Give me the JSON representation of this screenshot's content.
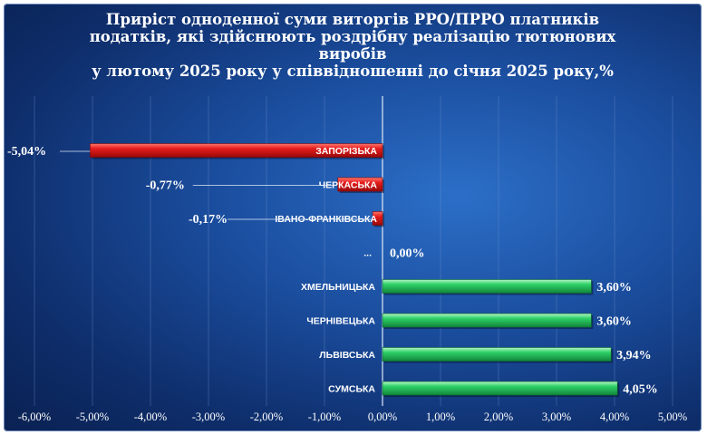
{
  "chart_data": {
    "type": "bar",
    "orientation": "horizontal",
    "title_lines": [
      "Приріст одноденної суми виторгів РРО/ПРРО платників",
      "податків, які здійснюють роздрібну реалізацію тютюнових",
      "виробів",
      "у лютому 2025 року у співвідношенні до січня 2025 року,%"
    ],
    "categories": [
      "ЗАПОРІЗЬКА",
      "ЧЕРКАСЬКА",
      "ІВАНО-ФРАНКІВСЬКА",
      "...",
      "ХМЕЛЬНИЦЬКА",
      "ЧЕРНІВЕЦЬКА",
      "ЛЬВІВСЬКА",
      "СУМСЬКА"
    ],
    "values": [
      -5.04,
      -0.77,
      -0.17,
      0.0,
      3.6,
      3.6,
      3.94,
      4.05
    ],
    "value_labels": [
      "-5,04%",
      "-0,77%",
      "-0,17%",
      "0,00%",
      "3,60%",
      "3,60%",
      "3,94%",
      "4,05%"
    ],
    "xlim": [
      -6,
      5
    ],
    "xticks": [
      -6,
      -5,
      -4,
      -3,
      -2,
      -1,
      0,
      1,
      2,
      3,
      4,
      5
    ],
    "xtick_labels": [
      "-6,00%",
      "-5,00%",
      "-4,00%",
      "-3,00%",
      "-2,00%",
      "-1,00%",
      "0,00%",
      "1,00%",
      "2,00%",
      "3,00%",
      "4,00%",
      "5,00%"
    ],
    "colors": {
      "negative": "#e01818",
      "positive": "#22c25a",
      "background": "#1a4c9c",
      "text": "#ffffff"
    },
    "grid": true,
    "legend": "none"
  }
}
